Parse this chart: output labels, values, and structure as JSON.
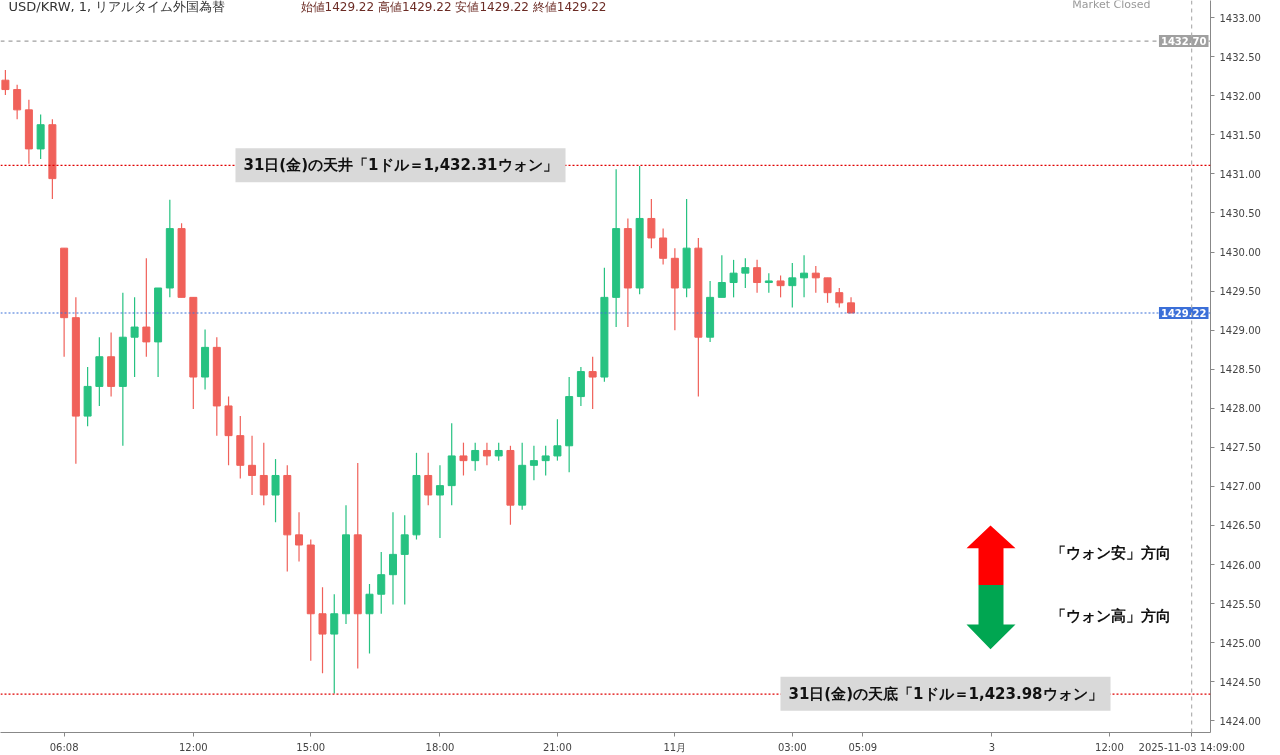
{
  "chart_data": {
    "type": "candlestick",
    "title": "USD/KRW, 1, リアルタイム外国為替",
    "subtitle": "始値1429.22 高値1429.22 安値1429.22 終値1429.22",
    "categories": [
      null,
      null,
      null,
      null,
      null,
      "06:08",
      null,
      null,
      null,
      null,
      null,
      null,
      null,
      null,
      null,
      null,
      "12:00",
      null,
      null,
      null,
      null,
      null,
      null,
      null,
      null,
      null,
      "15:00",
      null,
      null,
      null,
      null,
      null,
      null,
      null,
      null,
      null,
      null,
      "18:00",
      null,
      null,
      null,
      null,
      null,
      null,
      null,
      null,
      null,
      "21:00",
      null,
      null,
      null,
      null,
      null,
      null,
      null,
      null,
      null,
      "11月",
      null,
      null,
      null,
      null,
      null,
      null,
      null,
      null,
      null,
      "03:00",
      null,
      null,
      null,
      null,
      null,
      "05:09",
      null,
      null,
      null,
      null,
      null,
      null,
      null,
      null,
      null,
      null,
      "3",
      null,
      null,
      null,
      null,
      null,
      null,
      null,
      null,
      null,
      "12:00",
      null,
      null,
      null,
      null,
      null,
      null,
      "2025-11-03 14:09:00"
    ],
    "ohlc": [
      [
        1432.2,
        1432.33,
        1432.01,
        1432.08
      ],
      [
        1432.08,
        1432.14,
        1431.7,
        1431.82
      ],
      [
        1431.82,
        1431.95,
        1431.13,
        1431.32
      ],
      [
        1431.32,
        1431.76,
        1431.19,
        1431.63
      ],
      [
        1431.63,
        1431.7,
        1430.68,
        1430.94
      ],
      [
        1430.05,
        1430.05,
        1428.66,
        1429.16
      ],
      [
        1429.16,
        1429.42,
        1427.29,
        1427.9
      ],
      [
        1427.9,
        1428.53,
        1427.77,
        1428.28
      ],
      [
        1428.28,
        1428.91,
        1428.03,
        1428.66
      ],
      [
        1428.66,
        1428.97,
        1428.15,
        1428.28
      ],
      [
        1428.28,
        1429.48,
        1427.52,
        1428.91
      ],
      [
        1428.91,
        1429.42,
        1428.4,
        1429.04
      ],
      [
        1429.04,
        1429.92,
        1428.66,
        1428.85
      ],
      [
        1428.85,
        1429.54,
        1428.4,
        1429.54
      ],
      [
        1429.54,
        1430.67,
        1429.42,
        1430.3
      ],
      [
        1430.3,
        1430.37,
        1429.42,
        1429.42
      ],
      [
        1429.42,
        1429.42,
        1427.99,
        1428.4
      ],
      [
        1428.4,
        1429.01,
        1428.24,
        1428.78
      ],
      [
        1428.78,
        1428.91,
        1427.65,
        1428.03
      ],
      [
        1428.03,
        1428.15,
        1427.27,
        1427.65
      ],
      [
        1427.65,
        1427.9,
        1427.1,
        1427.27
      ],
      [
        1427.27,
        1427.65,
        1426.89,
        1427.14
      ],
      [
        1427.14,
        1427.56,
        1426.76,
        1426.89
      ],
      [
        1426.89,
        1427.35,
        1426.54,
        1427.14
      ],
      [
        1427.14,
        1427.27,
        1425.91,
        1426.38
      ],
      [
        1426.38,
        1426.67,
        1426.04,
        1426.25
      ],
      [
        1426.25,
        1426.32,
        1424.77,
        1425.37
      ],
      [
        1425.37,
        1425.71,
        1424.61,
        1425.11
      ],
      [
        1425.11,
        1425.62,
        1424.35,
        1425.37
      ],
      [
        1425.37,
        1426.76,
        1425.24,
        1426.38
      ],
      [
        1426.38,
        1427.3,
        1424.67,
        1425.37
      ],
      [
        1425.37,
        1425.75,
        1424.86,
        1425.62
      ],
      [
        1425.62,
        1426.16,
        1425.37,
        1425.87
      ],
      [
        1425.87,
        1426.67,
        1425.49,
        1426.13
      ],
      [
        1426.13,
        1426.63,
        1425.49,
        1426.38
      ],
      [
        1426.38,
        1427.43,
        1426.32,
        1427.14
      ],
      [
        1427.14,
        1427.43,
        1426.76,
        1426.89
      ],
      [
        1426.89,
        1427.27,
        1426.34,
        1427.01
      ],
      [
        1427.01,
        1427.81,
        1426.76,
        1427.39
      ],
      [
        1427.39,
        1427.56,
        1427.14,
        1427.33
      ],
      [
        1427.33,
        1427.56,
        1427.2,
        1427.46
      ],
      [
        1427.46,
        1427.56,
        1427.27,
        1427.39
      ],
      [
        1427.39,
        1427.56,
        1427.33,
        1427.46
      ],
      [
        1427.46,
        1427.52,
        1426.51,
        1426.76
      ],
      [
        1426.76,
        1427.56,
        1426.7,
        1427.27
      ],
      [
        1427.27,
        1427.52,
        1427.08,
        1427.33
      ],
      [
        1427.33,
        1427.52,
        1427.14,
        1427.39
      ],
      [
        1427.39,
        1427.86,
        1427.33,
        1427.52
      ],
      [
        1427.52,
        1428.4,
        1427.18,
        1428.15
      ],
      [
        1428.15,
        1428.53,
        1428.03,
        1428.47
      ],
      [
        1428.47,
        1428.66,
        1427.99,
        1428.4
      ],
      [
        1428.4,
        1429.8,
        1428.34,
        1429.42
      ],
      [
        1429.42,
        1431.06,
        1429.04,
        1430.3
      ],
      [
        1430.3,
        1430.43,
        1429.04,
        1429.54
      ],
      [
        1429.54,
        1431.1,
        1429.46,
        1430.43
      ],
      [
        1430.43,
        1430.68,
        1430.05,
        1430.18
      ],
      [
        1430.18,
        1430.3,
        1429.84,
        1429.92
      ],
      [
        1429.92,
        1430.05,
        1429.0,
        1429.54
      ],
      [
        1429.54,
        1430.68,
        1429.42,
        1430.05
      ],
      [
        1430.05,
        1430.18,
        1428.15,
        1428.91
      ],
      [
        1428.91,
        1429.63,
        1428.85,
        1429.42
      ],
      [
        1429.42,
        1429.96,
        1429.42,
        1429.61
      ],
      [
        1429.61,
        1429.9,
        1429.42,
        1429.73
      ],
      [
        1429.73,
        1429.92,
        1429.54,
        1429.8
      ],
      [
        1429.8,
        1429.9,
        1429.48,
        1429.61
      ],
      [
        1429.61,
        1429.73,
        1429.48,
        1429.63
      ],
      [
        1429.63,
        1429.7,
        1429.42,
        1429.57
      ],
      [
        1429.57,
        1429.86,
        1429.29,
        1429.67
      ],
      [
        1429.67,
        1429.96,
        1429.42,
        1429.73
      ],
      [
        1429.73,
        1429.82,
        1429.48,
        1429.67
      ],
      [
        1429.67,
        1429.67,
        1429.35,
        1429.48
      ],
      [
        1429.48,
        1429.54,
        1429.29,
        1429.35
      ],
      [
        1429.35,
        1429.42,
        1429.22,
        1429.22
      ],
      null,
      null,
      null,
      null,
      null,
      null,
      null,
      null,
      null,
      null,
      null,
      null,
      null,
      null,
      null,
      null,
      null,
      null,
      null,
      null,
      null,
      null,
      null,
      null,
      null,
      null,
      null,
      null,
      null
    ],
    "colors": [
      "#f0615a",
      "#f0615a",
      "#f0615a",
      "#26c281",
      "#f0615a",
      "#f0615a",
      "#f0615a",
      "#26c281",
      "#26c281",
      "#f0615a",
      "#26c281",
      "#26c281",
      "#f0615a",
      "#26c281",
      "#26c281",
      "#f0615a",
      "#f0615a",
      "#26c281",
      "#f0615a",
      "#f0615a",
      "#f0615a",
      "#f0615a",
      "#f0615a",
      "#26c281",
      "#f0615a",
      "#f0615a",
      "#f0615a",
      "#f0615a",
      "#26c281",
      "#26c281",
      "#f0615a",
      "#26c281",
      "#26c281",
      "#26c281",
      "#26c281",
      "#26c281",
      "#f0615a",
      "#26c281",
      "#26c281",
      "#f0615a",
      "#26c281",
      "#f0615a",
      "#26c281",
      "#f0615a",
      "#26c281",
      "#26c281",
      "#26c281",
      "#26c281",
      "#26c281",
      "#26c281",
      "#f0615a",
      "#26c281",
      "#26c281",
      "#f0615a",
      "#26c281",
      "#f0615a",
      "#f0615a",
      "#f0615a",
      "#26c281",
      "#f0615a",
      "#26c281",
      "#26c281",
      "#26c281",
      "#26c281",
      "#f0615a",
      "#26c281",
      "#f0615a",
      "#26c281",
      "#26c281",
      "#f0615a",
      "#f0615a",
      "#f0615a",
      "#f0615a",
      null,
      null,
      null,
      null,
      null,
      null,
      null,
      null,
      null,
      null,
      null,
      null,
      null,
      null,
      null,
      null,
      null,
      null,
      null,
      null,
      null,
      null,
      null,
      null,
      null,
      null,
      null,
      null,
      null
    ],
    "ylim": [
      1423.85,
      1433.22
    ],
    "yticks": [
      {
        "value": 1424,
        "label": "1424.00"
      },
      {
        "value": 1424.5,
        "label": "1424.50"
      },
      {
        "value": 1425,
        "label": "1425.00"
      },
      {
        "value": 1425.5,
        "label": "1425.50"
      },
      {
        "value": 1426,
        "label": "1426.00"
      },
      {
        "value": 1426.5,
        "label": "1426.50"
      },
      {
        "value": 1427,
        "label": "1427.00"
      },
      {
        "value": 1427.5,
        "label": "1427.50"
      },
      {
        "value": 1428,
        "label": "1428.00"
      },
      {
        "value": 1428.5,
        "label": "1428.50"
      },
      {
        "value": 1429,
        "label": "1429.00"
      },
      {
        "value": 1429.5,
        "label": "1429.50"
      },
      {
        "value": 1430,
        "label": "1430.00"
      },
      {
        "value": 1430.5,
        "label": "1430.50"
      },
      {
        "value": 1431,
        "label": "1431.00"
      },
      {
        "value": 1431.5,
        "label": "1431.50"
      },
      {
        "value": 1432,
        "label": "1432.00"
      },
      {
        "value": 1432.5,
        "label": "1432.50"
      },
      {
        "value": 1433,
        "label": "1433.00"
      }
    ],
    "ref_lines": [
      {
        "axis": "y",
        "value": 1431.11,
        "label": "31日(金)の天井「1ドル＝1,432.31ウォン」",
        "color": "#e00000",
        "line_style": "dotted"
      },
      {
        "axis": "y",
        "value": 1424.34,
        "label": "31日(金)の天底「1ドル＝1,423.98ウォン」",
        "color": "#e00000",
        "line_style": "dotted"
      },
      {
        "axis": "y",
        "value": 1432.7,
        "label": "1432.70",
        "color": "#a0a0a0",
        "line_style": "dashed"
      },
      {
        "axis": "y",
        "value": 1429.22,
        "label": "1429.22",
        "color": "#3b6fd8",
        "line_style": "dotted"
      },
      {
        "axis": "x",
        "value": "2025-11-03 14:09:00",
        "color": "#b0b0b0",
        "line_style": "dashed"
      }
    ],
    "annotations": [
      "Market Closed",
      "「ウォン安」方向",
      "「ウォン高」方向"
    ],
    "grid": false
  }
}
